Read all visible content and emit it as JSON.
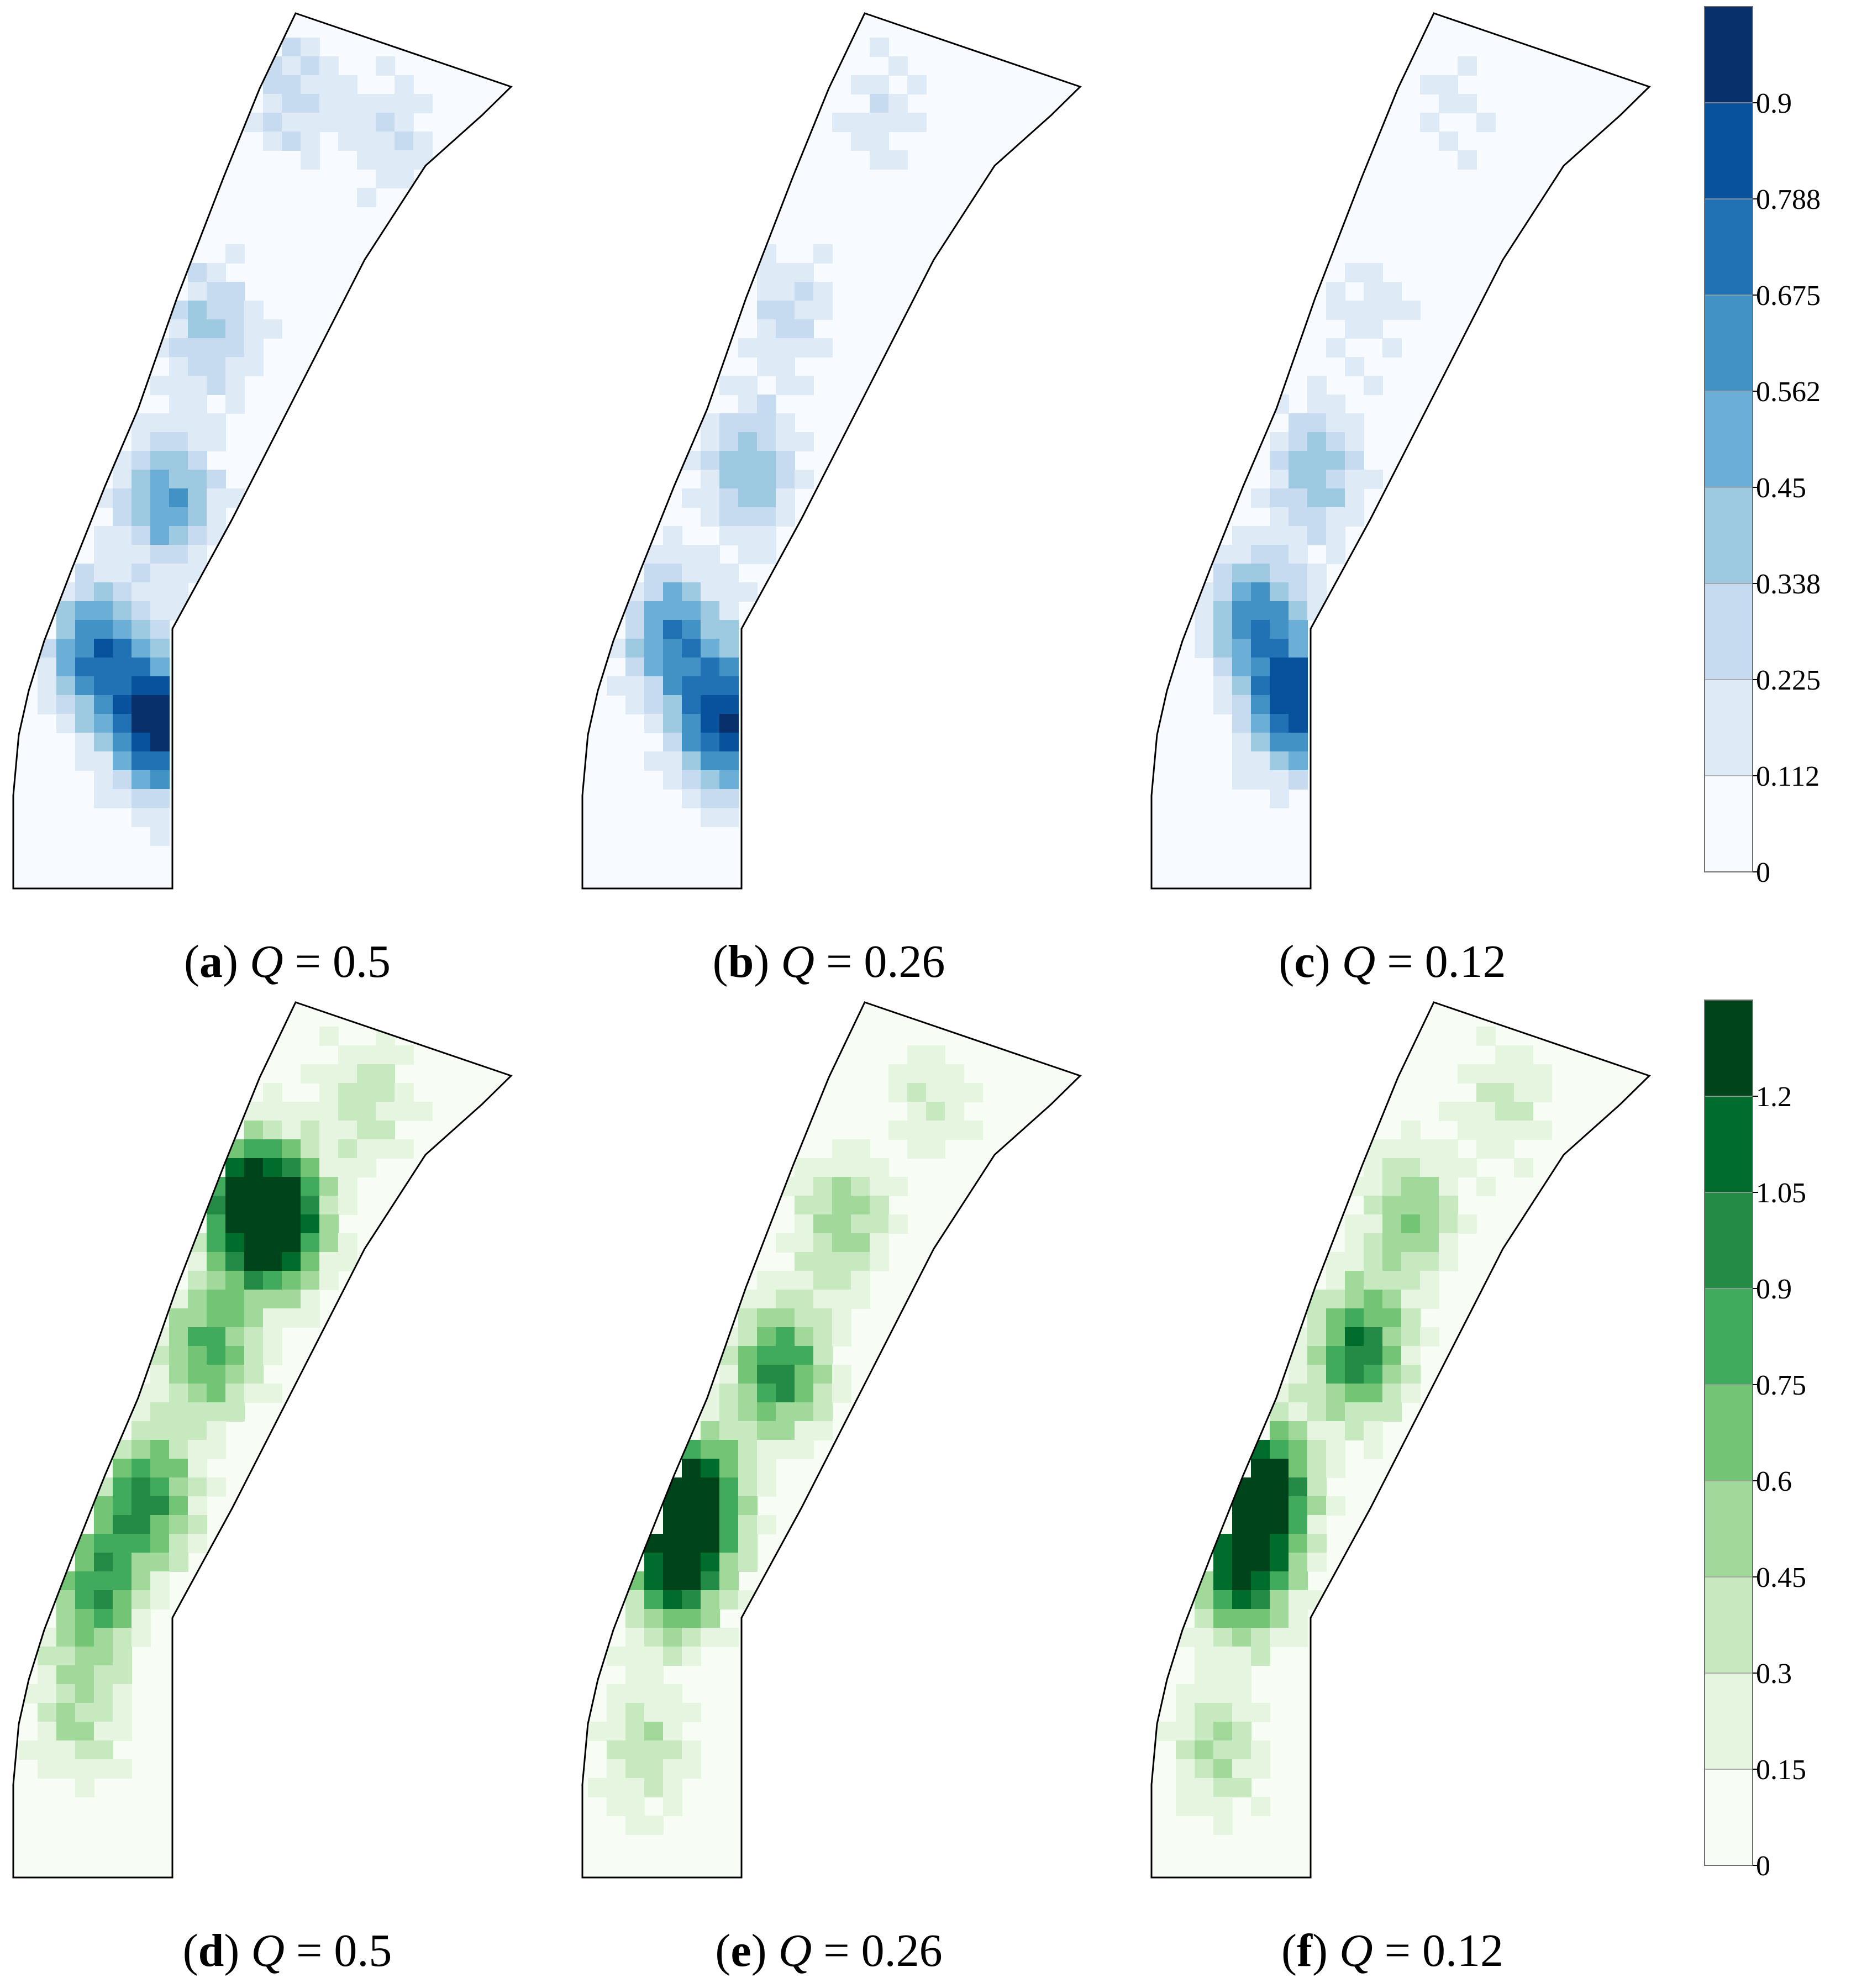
{
  "panels": [
    {
      "id": "a",
      "letter": "a",
      "q_symbol": "Q",
      "eq": " = ",
      "q_value": "0.5",
      "row": 0,
      "col": 0,
      "hotspots": [
        [
          0.3,
          0.8,
          1.0
        ],
        [
          0.18,
          0.72,
          0.7
        ],
        [
          0.32,
          0.55,
          0.55
        ],
        [
          0.4,
          0.36,
          0.38
        ],
        [
          0.55,
          0.1,
          0.3
        ],
        [
          0.75,
          0.15,
          0.22
        ]
      ]
    },
    {
      "id": "b",
      "letter": "b",
      "q_symbol": "Q",
      "eq": " = ",
      "q_value": "0.26",
      "row": 0,
      "col": 1,
      "hotspots": [
        [
          0.3,
          0.8,
          0.9
        ],
        [
          0.2,
          0.7,
          0.62
        ],
        [
          0.34,
          0.52,
          0.45
        ],
        [
          0.42,
          0.35,
          0.25
        ],
        [
          0.6,
          0.12,
          0.18
        ]
      ]
    },
    {
      "id": "c",
      "letter": "c",
      "q_symbol": "Q",
      "eq": " = ",
      "q_value": "0.12",
      "row": 0,
      "col": 2,
      "hotspots": [
        [
          0.3,
          0.78,
          0.85
        ],
        [
          0.22,
          0.68,
          0.58
        ],
        [
          0.34,
          0.52,
          0.4
        ],
        [
          0.44,
          0.34,
          0.18
        ],
        [
          0.6,
          0.12,
          0.14
        ]
      ]
    },
    {
      "id": "d",
      "letter": "d",
      "q_symbol": "Q",
      "eq": " = ",
      "q_value": "0.5",
      "row": 1,
      "col": 0,
      "hotspots": [
        [
          0.48,
          0.24,
          1.0
        ],
        [
          0.54,
          0.26,
          0.72
        ],
        [
          0.4,
          0.4,
          0.6
        ],
        [
          0.28,
          0.56,
          0.7
        ],
        [
          0.18,
          0.66,
          0.65
        ],
        [
          0.15,
          0.8,
          0.35
        ],
        [
          0.7,
          0.12,
          0.3
        ]
      ]
    },
    {
      "id": "e",
      "letter": "e",
      "q_symbol": "Q",
      "eq": " = ",
      "q_value": "0.26",
      "row": 1,
      "col": 1,
      "hotspots": [
        [
          0.52,
          0.26,
          0.42
        ],
        [
          0.4,
          0.42,
          0.72
        ],
        [
          0.24,
          0.56,
          0.95
        ],
        [
          0.2,
          0.64,
          0.85
        ],
        [
          0.15,
          0.84,
          0.32
        ],
        [
          0.7,
          0.12,
          0.22
        ]
      ]
    },
    {
      "id": "f",
      "letter": "f",
      "q_symbol": "Q",
      "eq": " = ",
      "q_value": "0.12",
      "row": 1,
      "col": 2,
      "hotspots": [
        [
          0.52,
          0.25,
          0.48
        ],
        [
          0.42,
          0.4,
          0.78
        ],
        [
          0.24,
          0.55,
          0.98
        ],
        [
          0.2,
          0.64,
          0.9
        ],
        [
          0.15,
          0.84,
          0.34
        ],
        [
          0.7,
          0.12,
          0.24
        ]
      ]
    }
  ],
  "colorbars": [
    {
      "id": "blue",
      "ticks": [
        "0",
        "0.112",
        "0.225",
        "0.338",
        "0.45",
        "0.562",
        "0.675",
        "0.788",
        "0.9"
      ],
      "colors": [
        "#f7fbff",
        "#deebf7",
        "#c6dbef",
        "#9ecae1",
        "#6baed6",
        "#4292c6",
        "#2171b5",
        "#08519c",
        "#08306b"
      ]
    },
    {
      "id": "green",
      "ticks": [
        "0",
        "0.15",
        "0.3",
        "0.45",
        "0.6",
        "0.75",
        "0.9",
        "1.05",
        "1.2"
      ],
      "colors": [
        "#f7fcf5",
        "#e5f5e0",
        "#c7e9c0",
        "#a1d99b",
        "#74c476",
        "#41ab5d",
        "#238b45",
        "#006d2c",
        "#00441b"
      ]
    }
  ]
}
